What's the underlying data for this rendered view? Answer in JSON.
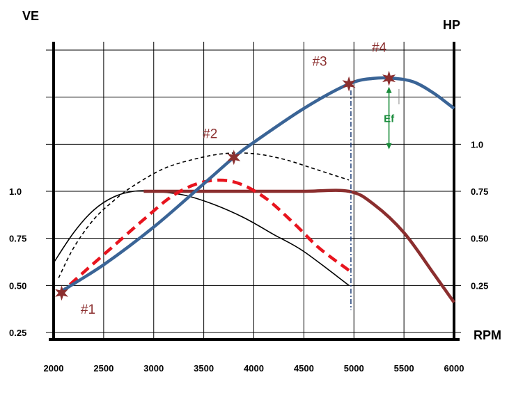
{
  "chart_data": {
    "type": "line",
    "axes": {
      "left_title": "VE",
      "right_title": "HP",
      "x_title": "RPM",
      "x_range": [
        2000,
        6000
      ],
      "x_ticks": [
        2000,
        2500,
        3000,
        3500,
        4000,
        4500,
        5000,
        5500,
        6000
      ],
      "left_ticks": [
        {
          "label": "1.0",
          "value": 1.0
        },
        {
          "label": "0.75",
          "value": 0.75
        },
        {
          "label": "0.50",
          "value": 0.5
        },
        {
          "label": "0.25",
          "value": 0.25
        }
      ],
      "right_ticks": [
        {
          "label": "1.0",
          "value": 1.0
        },
        {
          "label": "0.75",
          "value": 0.75
        },
        {
          "label": "0.50",
          "value": 0.5
        },
        {
          "label": "0.25",
          "value": 0.25
        }
      ],
      "left_range": [
        0.25,
        1.75
      ],
      "right_range": [
        0.0,
        1.5
      ],
      "grid": true
    },
    "series": [
      {
        "id": "hp-curve",
        "style": "solid",
        "color": "#3a6496",
        "axis": "right",
        "x": [
          2050,
          2500,
          3000,
          3500,
          3800,
          4000,
          4500,
          4950,
          5200,
          5400,
          5600,
          5800,
          6000
        ],
        "y": [
          0.21,
          0.36,
          0.56,
          0.79,
          0.93,
          1.01,
          1.19,
          1.32,
          1.35,
          1.35,
          1.33,
          1.27,
          1.19
        ]
      },
      {
        "id": "ve-solid-thin",
        "style": "solid",
        "color": "#000000",
        "axis": "left",
        "x": [
          2000,
          2200,
          2400,
          2600,
          2800,
          3000,
          3300,
          3600,
          3900,
          4200,
          4500,
          4950
        ],
        "y": [
          0.62,
          0.78,
          0.9,
          0.97,
          1.0,
          1.0,
          0.98,
          0.93,
          0.86,
          0.77,
          0.68,
          0.5
        ]
      },
      {
        "id": "ve-dashed-thin",
        "style": "dashed",
        "color": "#000000",
        "axis": "left",
        "x": [
          2050,
          2200,
          2400,
          2600,
          2800,
          3100,
          3400,
          3700,
          4000,
          4300,
          4600,
          4950
        ],
        "y": [
          0.54,
          0.7,
          0.85,
          0.95,
          1.03,
          1.12,
          1.17,
          1.2,
          1.2,
          1.17,
          1.12,
          1.06
        ]
      },
      {
        "id": "ve-dashed-red",
        "style": "dashed",
        "color": "#e8141e",
        "axis": "left",
        "x": [
          2050,
          2300,
          2600,
          2900,
          3200,
          3500,
          3800,
          4100,
          4400,
          4650,
          4950
        ],
        "y": [
          0.45,
          0.57,
          0.71,
          0.85,
          0.98,
          1.05,
          1.05,
          0.97,
          0.83,
          0.7,
          0.58
        ]
      },
      {
        "id": "ve-flat-brown",
        "style": "solid",
        "color": "#8b2e2e",
        "axis": "left",
        "x": [
          2900,
          3500,
          4000,
          4500,
          4950,
          5200,
          5500,
          5800,
          6000
        ],
        "y": [
          1.0,
          1.0,
          1.0,
          1.0,
          1.0,
          0.93,
          0.78,
          0.56,
          0.41
        ]
      }
    ],
    "points": [
      {
        "label": "#1",
        "x": 2080,
        "y": 0.21
      },
      {
        "label": "#2",
        "x": 3800,
        "y": 0.93
      },
      {
        "label": "#3",
        "x": 4950,
        "y": 1.32
      },
      {
        "label": "#4",
        "x": 5350,
        "y": 1.35
      }
    ],
    "annotations": {
      "ef_label": "Ef",
      "ef_x": 5350,
      "ef_from": 1.32,
      "ef_to": 0.98,
      "vline_x": 4970,
      "vline_x2": 5450
    },
    "colors": {
      "point_marker": "#8b2e2e",
      "point_text": "#8b2e2e",
      "ef": "#1a8c3c",
      "vline": "#1f3e78",
      "grid": "#000000"
    }
  }
}
